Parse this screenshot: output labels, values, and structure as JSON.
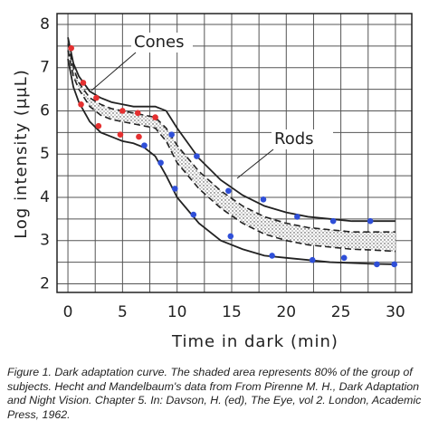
{
  "chart_data": {
    "type": "line",
    "x_label": "Time in dark (min)",
    "y_label": "Log intensity (μμL)",
    "xlim": [
      -1,
      31.5
    ],
    "ylim": [
      1.8,
      8.25
    ],
    "xticks": [
      0,
      5,
      10,
      15,
      20,
      25,
      30
    ],
    "yticks": [
      2,
      3,
      4,
      5,
      6,
      7,
      8
    ],
    "grid": true,
    "x": [
      0,
      0.5,
      1,
      2,
      3,
      4,
      5,
      6,
      7,
      8,
      9,
      10,
      12,
      14,
      16,
      18,
      20,
      22,
      24,
      26,
      28,
      30
    ],
    "series": [
      {
        "color": "#222222",
        "dash": false,
        "values": [
          7.7,
          7.1,
          6.8,
          6.45,
          6.3,
          6.2,
          6.15,
          6.1,
          6.1,
          6.1,
          6.0,
          5.6,
          4.9,
          4.4,
          4.05,
          3.8,
          3.65,
          3.55,
          3.5,
          3.45,
          3.45,
          3.45
        ]
      },
      {
        "color": "#222222",
        "dash": true,
        "values": [
          7.55,
          7.0,
          6.65,
          6.3,
          6.15,
          6.05,
          6.0,
          5.95,
          5.9,
          5.85,
          5.6,
          5.2,
          4.6,
          4.15,
          3.8,
          3.55,
          3.4,
          3.3,
          3.25,
          3.2,
          3.2,
          3.2
        ]
      },
      {
        "color": "#222222",
        "dash": true,
        "values": [
          7.4,
          6.8,
          6.5,
          6.1,
          5.9,
          5.8,
          5.75,
          5.7,
          5.65,
          5.6,
          5.3,
          4.8,
          4.2,
          3.75,
          3.4,
          3.15,
          3.0,
          2.9,
          2.85,
          2.8,
          2.78,
          2.75
        ]
      },
      {
        "color": "#222222",
        "dash": false,
        "values": [
          7.2,
          6.55,
          6.2,
          5.75,
          5.5,
          5.4,
          5.3,
          5.25,
          5.15,
          4.95,
          4.5,
          4.0,
          3.4,
          3.0,
          2.8,
          2.65,
          2.6,
          2.55,
          2.5,
          2.48,
          2.46,
          2.45
        ]
      }
    ],
    "shade_between": [
      1,
      2
    ],
    "points": [
      {
        "color": "#e53030",
        "x": [
          0.3,
          1.4,
          2.6,
          1.2,
          2.8,
          5.0,
          6.4,
          8.0,
          6.5,
          4.8
        ],
        "y": [
          7.45,
          6.65,
          6.3,
          6.15,
          5.65,
          6.0,
          5.95,
          5.85,
          5.4,
          5.45
        ]
      },
      {
        "color": "#2f4fd8",
        "x": [
          7.0,
          9.5,
          8.5,
          9.8,
          11.8,
          11.5,
          14.7,
          14.9,
          17.9,
          18.7,
          21.0,
          22.4,
          24.3,
          25.3,
          27.7,
          28.3,
          29.9
        ],
        "y": [
          5.2,
          5.45,
          4.8,
          4.2,
          4.95,
          3.6,
          4.15,
          3.1,
          3.95,
          2.65,
          3.55,
          2.55,
          3.45,
          2.6,
          3.45,
          2.45,
          2.45
        ]
      }
    ],
    "annotations": [
      "Cones",
      "Rods"
    ]
  },
  "caption": "Figure 1. Dark adaptation curve. The shaded area represents 80% of the group of subjects. Hecht and Mandelbaum's data from From Pirenne M. H., Dark Adaptation and Night Vision. Chapter 5. In: Davson, H. (ed), The Eye, vol 2. London, Academic Press, 1962."
}
